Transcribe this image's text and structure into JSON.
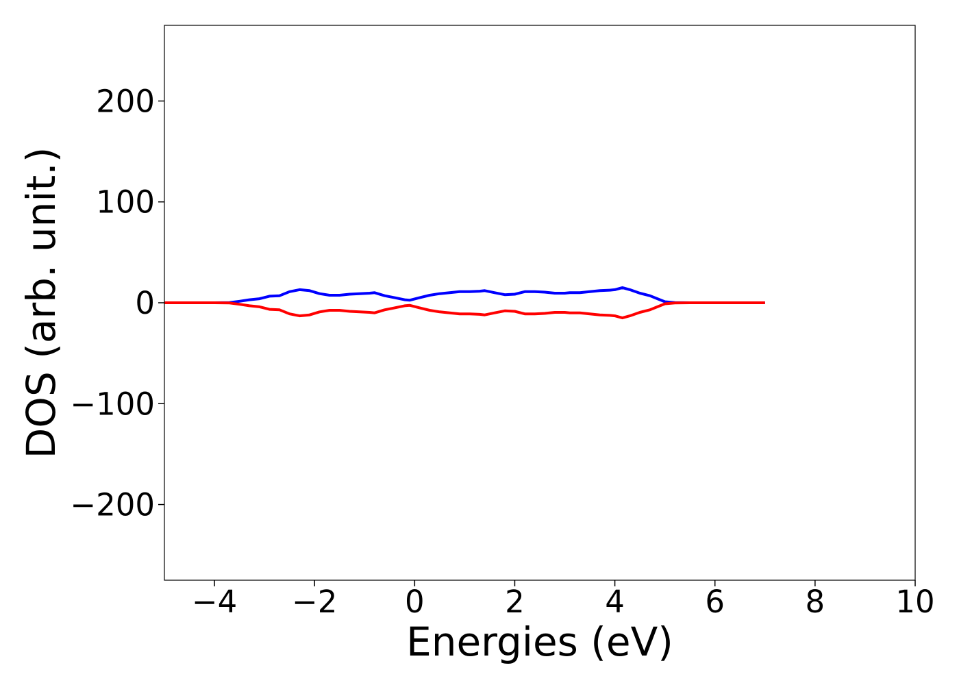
{
  "chart_data": {
    "type": "line",
    "title": "",
    "xlabel": "Energies (eV)",
    "ylabel": "DOS (arb. unit.)",
    "xlim": [
      -5,
      10
    ],
    "ylim": [
      -275,
      275
    ],
    "grid": false,
    "legend": "none",
    "x_ticks": [
      -4,
      -2,
      0,
      2,
      4,
      6,
      8,
      10
    ],
    "y_ticks": [
      -200,
      -100,
      0,
      100,
      200
    ],
    "x_tick_labels": [
      "−4",
      "−2",
      "0",
      "2",
      "4",
      "6",
      "8",
      "10"
    ],
    "y_tick_labels": [
      "−200",
      "−100",
      "0",
      "100",
      "200"
    ],
    "series": [
      {
        "color": "#0000ff",
        "x": [
          -5.0,
          -4.0,
          -3.7,
          -3.5,
          -3.3,
          -3.1,
          -2.9,
          -2.7,
          -2.5,
          -2.3,
          -2.1,
          -1.9,
          -1.7,
          -1.5,
          -1.3,
          -1.1,
          -0.9,
          -0.8,
          -0.6,
          -0.4,
          -0.2,
          -0.1,
          0.1,
          0.3,
          0.5,
          0.7,
          0.9,
          1.1,
          1.3,
          1.4,
          1.6,
          1.8,
          2.0,
          2.2,
          2.4,
          2.6,
          2.8,
          3.0,
          3.1,
          3.3,
          3.5,
          3.7,
          3.9,
          4.0,
          4.15,
          4.3,
          4.5,
          4.7,
          4.85,
          5.0,
          5.2,
          5.5,
          6.0,
          7.0
        ],
        "y": [
          0,
          0,
          0.2,
          1.5,
          3,
          4,
          6.5,
          7,
          11,
          13,
          12,
          9,
          7.5,
          7.5,
          8.5,
          9,
          9.5,
          10,
          7,
          5,
          3,
          2.5,
          5,
          7.5,
          9,
          10,
          11,
          11,
          11.5,
          12,
          10,
          8,
          8.5,
          11,
          11,
          10.5,
          9.5,
          9.5,
          10,
          10,
          11,
          12,
          12.5,
          13,
          15,
          13,
          9.5,
          7,
          4,
          1,
          0.2,
          0,
          0,
          0
        ]
      },
      {
        "color": "#ff0000",
        "x": [
          -5.0,
          -4.0,
          -3.7,
          -3.5,
          -3.3,
          -3.1,
          -2.9,
          -2.7,
          -2.5,
          -2.3,
          -2.1,
          -1.9,
          -1.7,
          -1.5,
          -1.3,
          -1.1,
          -0.9,
          -0.8,
          -0.6,
          -0.4,
          -0.2,
          -0.1,
          0.1,
          0.3,
          0.5,
          0.7,
          0.9,
          1.1,
          1.3,
          1.4,
          1.6,
          1.8,
          2.0,
          2.2,
          2.4,
          2.6,
          2.8,
          3.0,
          3.1,
          3.3,
          3.5,
          3.7,
          3.9,
          4.0,
          4.15,
          4.3,
          4.5,
          4.7,
          4.85,
          5.0,
          5.2,
          5.5,
          6.0,
          7.0
        ],
        "y": [
          0,
          0,
          -0.2,
          -1.5,
          -3,
          -4,
          -6.5,
          -7,
          -11,
          -13,
          -12,
          -9,
          -7.5,
          -7.5,
          -8.5,
          -9,
          -9.5,
          -10,
          -7,
          -5,
          -3,
          -2.5,
          -5,
          -7.5,
          -9,
          -10,
          -11,
          -11,
          -11.5,
          -12,
          -10,
          -8,
          -8.5,
          -11,
          -11,
          -10.5,
          -9.5,
          -9.5,
          -10,
          -10,
          -11,
          -12,
          -12.5,
          -13,
          -15,
          -13,
          -9.5,
          -7,
          -4,
          -1,
          -0.2,
          0,
          0,
          0
        ]
      }
    ]
  }
}
